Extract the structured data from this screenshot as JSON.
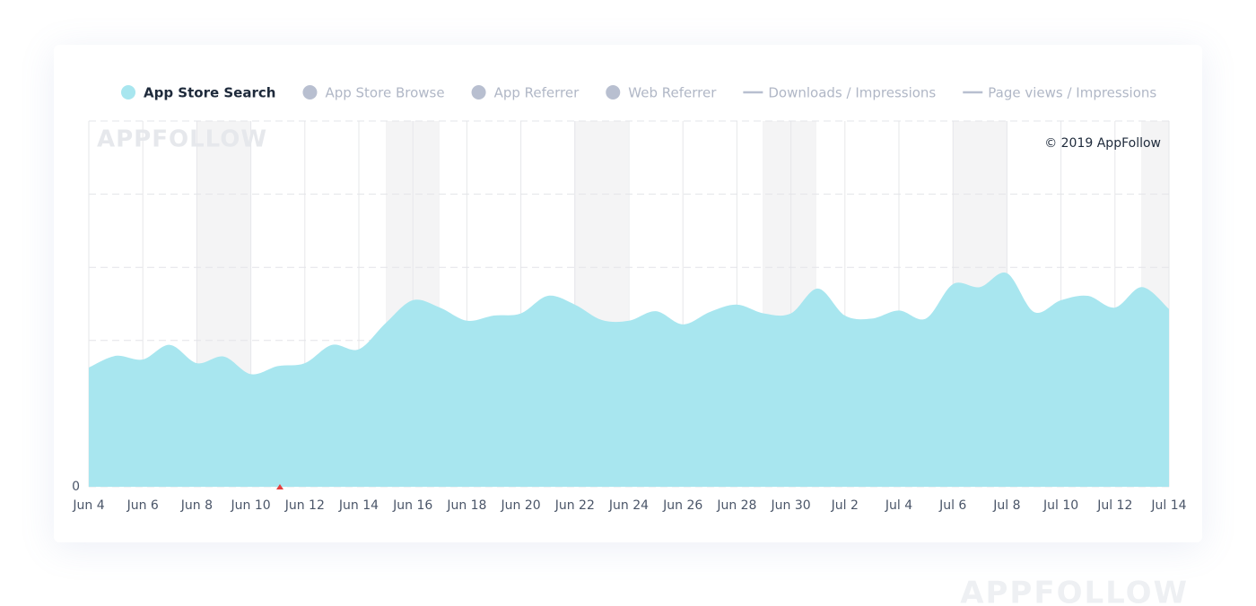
{
  "chart_data": {
    "type": "area",
    "watermark": "APPFOLLOW",
    "copyright": "© 2019 AppFollow",
    "footer_watermark": "APPFOLLOW",
    "categories": [
      "Jun 4",
      null,
      "Jun 6",
      null,
      "Jun 8",
      null,
      "Jun 10",
      null,
      "Jun 12",
      null,
      "Jun 14",
      null,
      "Jun 16",
      null,
      "Jun 18",
      null,
      "Jun 20",
      null,
      "Jun 22",
      null,
      "Jun 24",
      null,
      "Jun 26",
      null,
      "Jun 28",
      null,
      "Jun 30",
      null,
      "Jul 2",
      null,
      "Jul 4",
      null,
      "Jul 6",
      null,
      "Jul 8",
      null,
      "Jul 10",
      null,
      "Jul 12",
      null,
      "Jul 14"
    ],
    "series": [
      {
        "name": "App Store Search",
        "color": "#a8e6ef",
        "values": [
          1.63,
          1.79,
          1.74,
          1.94,
          1.69,
          1.78,
          1.54,
          1.65,
          1.69,
          1.94,
          1.88,
          2.24,
          2.55,
          2.45,
          2.27,
          2.34,
          2.37,
          2.61,
          2.49,
          2.28,
          2.27,
          2.4,
          2.22,
          2.39,
          2.49,
          2.37,
          2.37,
          2.71,
          2.34,
          2.3,
          2.41,
          2.3,
          2.77,
          2.73,
          2.92,
          2.39,
          2.55,
          2.61,
          2.45,
          2.73,
          2.43
        ]
      }
    ],
    "legend_inactive": [
      {
        "name": "App Store Browse",
        "color": "#b8bfd0",
        "marker": "dot"
      },
      {
        "name": "App Referrer",
        "color": "#b8bfd0",
        "marker": "dot"
      },
      {
        "name": "Web Referrer",
        "color": "#b8bfd0",
        "marker": "dot"
      },
      {
        "name": "Downloads / Impressions",
        "color": "#b8bfd0",
        "marker": "line"
      },
      {
        "name": "Page views / Impressions",
        "color": "#b8bfd0",
        "marker": "line"
      }
    ],
    "ylim": [
      0,
      5
    ],
    "yticks": [
      0,
      {
        "value": 1,
        "label": null
      },
      {
        "value": 2,
        "label": null
      },
      {
        "value": 3,
        "label": null
      },
      {
        "value": 4,
        "label": null
      }
    ],
    "grid": true
  }
}
